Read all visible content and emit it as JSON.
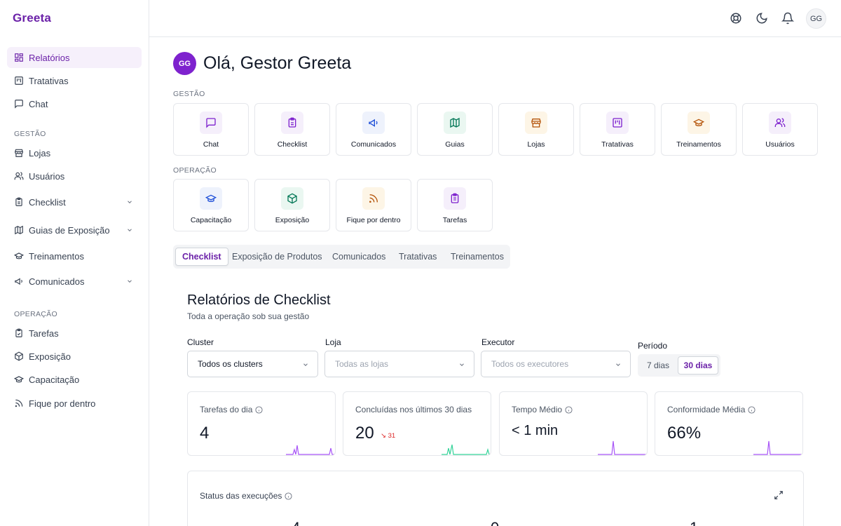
{
  "app": {
    "logo": "Greeta"
  },
  "sidebar": {
    "items_top": [
      {
        "label": "Relatórios",
        "icon": "grid-icon",
        "active": true
      },
      {
        "label": "Tratativas",
        "icon": "kanban-icon"
      },
      {
        "label": "Chat",
        "icon": "message-icon"
      }
    ],
    "section_gestao": "GESTÃO",
    "items_gestao": [
      {
        "label": "Lojas",
        "icon": "store-icon"
      },
      {
        "label": "Usuários",
        "icon": "users-icon"
      },
      {
        "label": "Checklist",
        "icon": "clipboard-icon",
        "expandable": true
      },
      {
        "label": "Guias de Exposição",
        "icon": "map-icon",
        "expandable": true
      },
      {
        "label": "Treinamentos",
        "icon": "graduation-cap-icon"
      },
      {
        "label": "Comunicados",
        "icon": "megaphone-icon",
        "expandable": true
      }
    ],
    "section_operacao": "OPERAÇÃO",
    "items_operacao": [
      {
        "label": "Tarefas",
        "icon": "clipboard-check-icon"
      },
      {
        "label": "Exposição",
        "icon": "box-icon"
      },
      {
        "label": "Capacitação",
        "icon": "graduation-cap-icon"
      },
      {
        "label": "Fique por dentro",
        "icon": "rss-icon"
      }
    ]
  },
  "topbar": {
    "avatar_initials": "GG"
  },
  "greeting": {
    "avatar_initials": "GG",
    "title": "Olá, Gestor Greeta"
  },
  "gestao": {
    "label": "GESTÃO",
    "tiles": [
      {
        "label": "Chat",
        "icon": "message-icon",
        "color": "#7e22ce",
        "bg": "#f5effb"
      },
      {
        "label": "Checklist",
        "icon": "clipboard-icon",
        "color": "#7e22ce",
        "bg": "#f5effb"
      },
      {
        "label": "Comunicados",
        "icon": "megaphone-icon",
        "color": "#1d4ed8",
        "bg": "#eef2fc"
      },
      {
        "label": "Guias",
        "icon": "map-icon",
        "color": "#047857",
        "bg": "#eaf7f1"
      },
      {
        "label": "Lojas",
        "icon": "store-icon",
        "color": "#b45309",
        "bg": "#fdf5e6"
      },
      {
        "label": "Tratativas",
        "icon": "kanban-icon",
        "color": "#7e22ce",
        "bg": "#f5effb"
      },
      {
        "label": "Treinamentos",
        "icon": "graduation-cap-icon",
        "color": "#b45309",
        "bg": "#fdf5e6"
      },
      {
        "label": "Usuários",
        "icon": "users-icon",
        "color": "#7e22ce",
        "bg": "#f5effb"
      }
    ]
  },
  "operacao": {
    "label": "OPERAÇÃO",
    "tiles": [
      {
        "label": "Capacitação",
        "icon": "graduation-cap-icon",
        "color": "#1d4ed8",
        "bg": "#eef2fc"
      },
      {
        "label": "Exposição",
        "icon": "box-icon",
        "color": "#047857",
        "bg": "#eaf7f1"
      },
      {
        "label": "Fique por dentro",
        "icon": "rss-icon",
        "color": "#b45309",
        "bg": "#fdf5e6"
      },
      {
        "label": "Tarefas",
        "icon": "clipboard-check-icon",
        "color": "#7e22ce",
        "bg": "#f5effb"
      }
    ]
  },
  "tabs": [
    {
      "label": "Checklist",
      "active": true
    },
    {
      "label": "Exposição de Produtos"
    },
    {
      "label": "Comunicados"
    },
    {
      "label": "Tratativas"
    },
    {
      "label": "Treinamentos"
    }
  ],
  "report": {
    "title": "Relatórios de Checklist",
    "subtitle": "Toda a operação sob sua gestão"
  },
  "filters": {
    "cluster": {
      "label": "Cluster",
      "value": "Todos os clusters"
    },
    "loja": {
      "label": "Loja",
      "placeholder": "Todas as lojas"
    },
    "executor": {
      "label": "Executor",
      "placeholder": "Todos os executores"
    },
    "periodo": {
      "label": "Período",
      "options": [
        "7 dias",
        "30 dias"
      ],
      "selected": "30 dias"
    }
  },
  "kpis": [
    {
      "title": "Tarefas do dia",
      "value": "4",
      "info": true,
      "spark_color": "#a855f7"
    },
    {
      "title": "Concluídas nos últimos 30 dias",
      "value": "20",
      "delta": "↘ 31",
      "info": false,
      "spark_color": "#34d399"
    },
    {
      "title": "Tempo Médio",
      "value": "< 1 min",
      "info": true,
      "spark_color": "#a855f7"
    },
    {
      "title": "Conformidade Média",
      "value": "66%",
      "info": true,
      "spark_color": "#a855f7"
    }
  ],
  "status": {
    "title": "Status das execuções",
    "values": [
      "4",
      "0",
      "1"
    ]
  }
}
